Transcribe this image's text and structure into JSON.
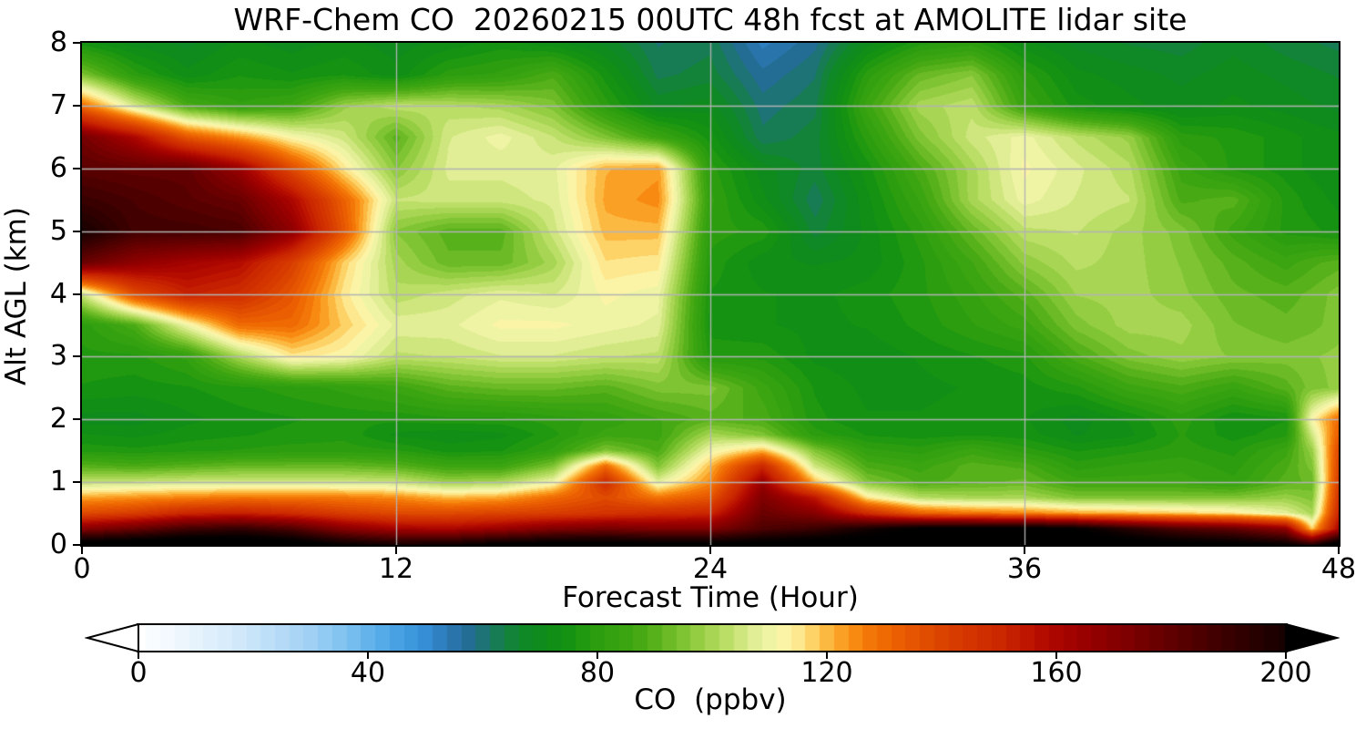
{
  "title": "WRF-Chem CO  20260215 00UTC 48h fcst at AMOLITE lidar site",
  "axes": {
    "xlabel": "Forecast Time (Hour)",
    "ylabel": "Alt AGL (km)",
    "xlim": [
      0,
      48
    ],
    "ylim": [
      0,
      8
    ],
    "xticks": [
      0,
      12,
      24,
      36,
      48
    ],
    "yticks": [
      0,
      1,
      2,
      3,
      4,
      5,
      6,
      7,
      8
    ],
    "grid": true,
    "grid_color": "#b3b3b3"
  },
  "colorbar": {
    "label": "CO  (ppbv)",
    "ticks": [
      0,
      40,
      80,
      120,
      160,
      200
    ],
    "range": [
      0,
      200
    ],
    "extend": "both",
    "under_color": "#ffffff",
    "over_color": "#000000",
    "stops": [
      [
        0,
        "#ffffff"
      ],
      [
        10,
        "#e7f3fc"
      ],
      [
        20,
        "#c8e4f9"
      ],
      [
        30,
        "#a0d0f4"
      ],
      [
        38,
        "#71bcee"
      ],
      [
        44,
        "#4ba5e5"
      ],
      [
        50,
        "#358ed6"
      ],
      [
        54,
        "#2b77b3"
      ],
      [
        58,
        "#226b90"
      ],
      [
        61,
        "#1b7767"
      ],
      [
        64,
        "#138140"
      ],
      [
        68,
        "#0e8922"
      ],
      [
        74,
        "#109012"
      ],
      [
        80,
        "#2b9d0f"
      ],
      [
        86,
        "#3ea611"
      ],
      [
        90,
        "#57b11b"
      ],
      [
        94,
        "#77c02d"
      ],
      [
        98,
        "#98cf45"
      ],
      [
        102,
        "#b7dc62"
      ],
      [
        105,
        "#cfe67e"
      ],
      [
        108,
        "#e4ef99"
      ],
      [
        111,
        "#f4f6ab"
      ],
      [
        113,
        "#fdf3a6"
      ],
      [
        115,
        "#fde88f"
      ],
      [
        117,
        "#fdd76f"
      ],
      [
        119,
        "#fcc350"
      ],
      [
        121,
        "#fbae33"
      ],
      [
        123,
        "#fa9b20"
      ],
      [
        125,
        "#f88a12"
      ],
      [
        127,
        "#f47a09"
      ],
      [
        130,
        "#ef6a03"
      ],
      [
        134,
        "#e85801"
      ],
      [
        139,
        "#dd4700"
      ],
      [
        144,
        "#d43600"
      ],
      [
        150,
        "#cb2800"
      ],
      [
        155,
        "#bd1500"
      ],
      [
        159,
        "#ae0800"
      ],
      [
        163,
        "#a00200"
      ],
      [
        167,
        "#920000"
      ],
      [
        172,
        "#800000"
      ],
      [
        177,
        "#6d0000"
      ],
      [
        183,
        "#550000"
      ],
      [
        189,
        "#3d0000"
      ],
      [
        195,
        "#270000"
      ],
      [
        201,
        "#120000"
      ],
      [
        206,
        "#040000"
      ],
      [
        210,
        "#000000"
      ],
      [
        230,
        "#000000"
      ]
    ]
  },
  "chart_data": {
    "type": "heatmap",
    "title": "WRF-Chem CO  20260215 00UTC 48h fcst at AMOLITE lidar site",
    "xlabel": "Forecast Time (Hour)",
    "ylabel": "Alt AGL (km)",
    "units": "ppbv",
    "level_step": 2.5,
    "x_hours": [
      0,
      2,
      4,
      6,
      8,
      10,
      12,
      14,
      16,
      18,
      20,
      22,
      24,
      26,
      28,
      30,
      32,
      34,
      36,
      38,
      40,
      42,
      44,
      46,
      47,
      48
    ],
    "y_alt_km": [
      8,
      7.5,
      7,
      6.5,
      6,
      5.5,
      5,
      4.5,
      4,
      3.5,
      3,
      2.5,
      2,
      1.75,
      1.5,
      1.25,
      1,
      0.75,
      0.5,
      0.25,
      0
    ],
    "values": [
      [
        75,
        70,
        68,
        72,
        70,
        72,
        70,
        72,
        75,
        72,
        68,
        61,
        63,
        53,
        58,
        70,
        78,
        80,
        72,
        68,
        66,
        65,
        68,
        65,
        64,
        63
      ],
      [
        95,
        80,
        72,
        76,
        74,
        76,
        72,
        80,
        82,
        88,
        75,
        63,
        65,
        57,
        61,
        80,
        92,
        96,
        80,
        72,
        70,
        68,
        70,
        68,
        67,
        66
      ],
      [
        130,
        106,
        88,
        82,
        85,
        98,
        103,
        102,
        100,
        95,
        80,
        68,
        70,
        60,
        63,
        85,
        100,
        103,
        84,
        75,
        72,
        70,
        72,
        70,
        69,
        68
      ],
      [
        175,
        160,
        135,
        124,
        112,
        105,
        90,
        106,
        110,
        104,
        95,
        85,
        75,
        62,
        65,
        80,
        95,
        105,
        110,
        103,
        98,
        80,
        78,
        75,
        73,
        72
      ],
      [
        182,
        180,
        180,
        165,
        138,
        115,
        96,
        107,
        107,
        108,
        121,
        123,
        80,
        70,
        65,
        75,
        88,
        100,
        112,
        107,
        102,
        85,
        78,
        75,
        73,
        72
      ],
      [
        190,
        186,
        182,
        178,
        160,
        132,
        104,
        105,
        105,
        107,
        122,
        125,
        82,
        72,
        62,
        73,
        84,
        100,
        110,
        106,
        104,
        88,
        90,
        78,
        75,
        73
      ],
      [
        200,
        188,
        188,
        186,
        168,
        135,
        96,
        90,
        90,
        105,
        120,
        120,
        80,
        78,
        65,
        72,
        80,
        92,
        103,
        104,
        100,
        95,
        85,
        78,
        77,
        75
      ],
      [
        178,
        168,
        162,
        158,
        142,
        118,
        100,
        92,
        92,
        100,
        116,
        115,
        78,
        72,
        71,
        72,
        78,
        86,
        97,
        102,
        100,
        96,
        90,
        85,
        88,
        90
      ],
      [
        105,
        138,
        152,
        148,
        135,
        115,
        102,
        105,
        108,
        106,
        112,
        110,
        76,
        74,
        73,
        75,
        78,
        83,
        90,
        99,
        100,
        97,
        92,
        90,
        92,
        95
      ],
      [
        80,
        88,
        110,
        130,
        130,
        118,
        108,
        108,
        112,
        112,
        110,
        108,
        75,
        74,
        73,
        74,
        77,
        81,
        85,
        95,
        100,
        100,
        94,
        92,
        93,
        95
      ],
      [
        78,
        78,
        82,
        100,
        115,
        112,
        103,
        104,
        106,
        106,
        104,
        103,
        78,
        78,
        73,
        72,
        74,
        76,
        78,
        88,
        95,
        98,
        96,
        95,
        96,
        97
      ],
      [
        76,
        75,
        76,
        78,
        80,
        82,
        85,
        90,
        92,
        92,
        90,
        95,
        95,
        85,
        76,
        73,
        73,
        74,
        75,
        78,
        85,
        88,
        84,
        90,
        95,
        97
      ],
      [
        70,
        70,
        73,
        75,
        76,
        77,
        77,
        78,
        78,
        80,
        82,
        86,
        90,
        88,
        77,
        74,
        74,
        75,
        74,
        70,
        74,
        80,
        74,
        76,
        112,
        130
      ],
      [
        74,
        73,
        75,
        76,
        77,
        78,
        73,
        72,
        73,
        78,
        85,
        85,
        100,
        95,
        80,
        76,
        75,
        76,
        75,
        71,
        73,
        79,
        75,
        78,
        105,
        133
      ],
      [
        78,
        77,
        78,
        79,
        80,
        80,
        79,
        75,
        76,
        82,
        95,
        88,
        110,
        120,
        95,
        82,
        80,
        85,
        80,
        76,
        78,
        80,
        78,
        85,
        98,
        138
      ],
      [
        90,
        88,
        90,
        92,
        92,
        92,
        90,
        85,
        85,
        95,
        130,
        95,
        120,
        150,
        105,
        88,
        85,
        90,
        88,
        80,
        82,
        83,
        80,
        88,
        95,
        140
      ],
      [
        103,
        104,
        105,
        105,
        105,
        105,
        104,
        98,
        100,
        110,
        148,
        108,
        125,
        165,
        120,
        95,
        88,
        90,
        92,
        85,
        85,
        85,
        82,
        90,
        92,
        142
      ],
      [
        122,
        124,
        126,
        128,
        128,
        127,
        125,
        120,
        122,
        130,
        138,
        128,
        135,
        172,
        155,
        115,
        102,
        100,
        100,
        95,
        95,
        95,
        95,
        98,
        95,
        145
      ],
      [
        138,
        142,
        150,
        152,
        148,
        142,
        138,
        138,
        140,
        142,
        145,
        148,
        150,
        178,
        170,
        148,
        132,
        128,
        126,
        122,
        120,
        118,
        115,
        108,
        100,
        150
      ],
      [
        170,
        178,
        188,
        192,
        185,
        170,
        162,
        160,
        165,
        172,
        175,
        172,
        172,
        185,
        190,
        200,
        210,
        212,
        212,
        208,
        195,
        185,
        180,
        168,
        118,
        160
      ],
      [
        215,
        218,
        220,
        220,
        215,
        205,
        200,
        202,
        208,
        212,
        212,
        210,
        210,
        212,
        215,
        218,
        222,
        222,
        222,
        220,
        215,
        212,
        210,
        205,
        195,
        215
      ]
    ]
  }
}
